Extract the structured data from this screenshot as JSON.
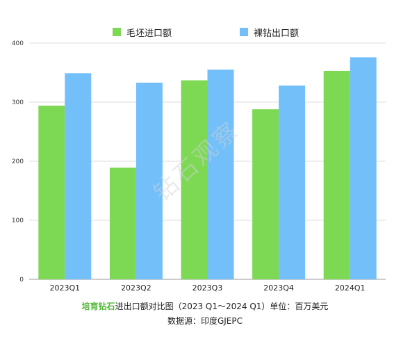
{
  "chart_data": {
    "type": "bar",
    "categories": [
      "2023Q1",
      "2023Q2",
      "2023Q3",
      "2023Q4",
      "2024Q1"
    ],
    "series": [
      {
        "name": "毛坯进口额",
        "values": [
          294,
          189,
          337,
          288,
          353
        ],
        "color": "#7dd854"
      },
      {
        "name": "裸钻出口额",
        "values": [
          349,
          333,
          355,
          328,
          376
        ],
        "color": "#72bffa"
      }
    ],
    "yticks": [
      0,
      100,
      200,
      300,
      400
    ],
    "ylim": [
      0,
      400
    ],
    "grid": true,
    "legend_position": "top"
  },
  "legend": {
    "item1": "毛坯进口额",
    "item2": "裸钻出口额"
  },
  "watermark": "钻石观察",
  "caption": {
    "highlight": "培育钻石",
    "title_rest": "进出口额对比图（2023 Q1～2024 Q1）单位：百万美元",
    "source": "数据源：印度GJEPC"
  }
}
